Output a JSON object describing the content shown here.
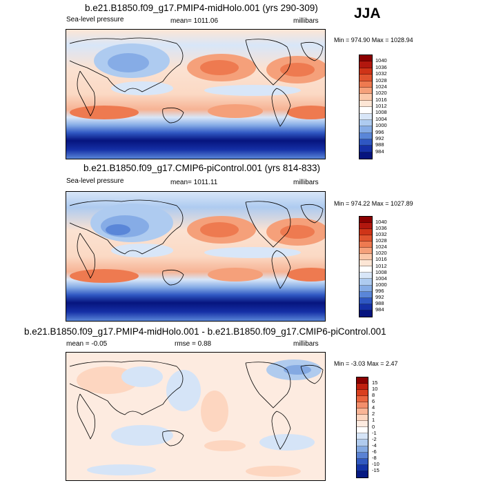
{
  "season": "JJA",
  "panels": [
    {
      "title": "b.e21.B1850.f09_g17.PMIP4-midHolo.001 (yrs 290-309)",
      "left_label": "Sea-level pressure",
      "mean_label": "mean= 1011.06",
      "units": "millibars",
      "minmax": "Min = 974.90 Max = 1028.94",
      "colorbar_labels": [
        "1040",
        "1036",
        "1032",
        "1028",
        "1024",
        "1020",
        "1016",
        "1012",
        "1008",
        "1004",
        "1000",
        "996",
        "992",
        "988",
        "984"
      ]
    },
    {
      "title": "b.e21.B1850.f09_g17.CMIP6-piControl.001 (yrs 814-833)",
      "left_label": "Sea-level pressure",
      "mean_label": "mean= 1011.11",
      "units": "millibars",
      "minmax": "Min = 974.22 Max = 1027.89",
      "colorbar_labels": [
        "1040",
        "1036",
        "1032",
        "1028",
        "1024",
        "1020",
        "1016",
        "1012",
        "1008",
        "1004",
        "1000",
        "996",
        "992",
        "988",
        "984"
      ]
    },
    {
      "title": "b.e21.B1850.f09_g17.PMIP4-midHolo.001 - b.e21.B1850.f09_g17.CMIP6-piControl.001",
      "mean_label": "mean =  -0.05",
      "rmse_label": "rmse =   0.88",
      "units": "millibars",
      "minmax": "Min =  -3.03 Max =   2.47",
      "colorbar_labels": [
        "15",
        "10",
        "8",
        "6",
        "4",
        "2",
        "1",
        "0",
        "-1",
        "-2",
        "-4",
        "-6",
        "-8",
        "-10",
        "-15"
      ]
    }
  ],
  "colors": {
    "abs_scale": [
      "#8b0000",
      "#b2170e",
      "#cf3418",
      "#e0542f",
      "#ee7a50",
      "#f5a07a",
      "#fbc8aa",
      "#fde6d5",
      "#ffffff",
      "#d8e6f8",
      "#aecbf0",
      "#86ace6",
      "#5a86d8",
      "#2f57c2",
      "#1530a6",
      "#06147e"
    ],
    "diff_scale": [
      "#8b0000",
      "#c0200f",
      "#d9401f",
      "#ea6640",
      "#f38f6c",
      "#f9b596",
      "#fdd6c0",
      "#fdebe0",
      "#ffffff",
      "#d5e4f7",
      "#b0cbee",
      "#84a9e2",
      "#5a82d4",
      "#3159c0",
      "#1333a6",
      "#071a82"
    ]
  }
}
